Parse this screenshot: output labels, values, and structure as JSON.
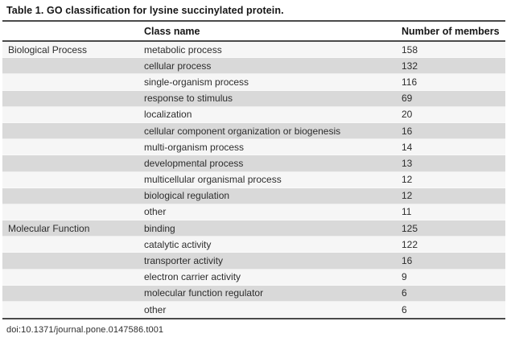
{
  "table": {
    "title": "Table 1. GO classification for lysine succinylated protein.",
    "columns": {
      "group": "",
      "class_name": "Class name",
      "members": "Number of members"
    },
    "rows": [
      {
        "group": "Biological Process",
        "class_name": "metabolic process",
        "members": "158"
      },
      {
        "group": "",
        "class_name": "cellular process",
        "members": "132"
      },
      {
        "group": "",
        "class_name": "single-organism process",
        "members": "116"
      },
      {
        "group": "",
        "class_name": "response to stimulus",
        "members": "69"
      },
      {
        "group": "",
        "class_name": "localization",
        "members": "20"
      },
      {
        "group": "",
        "class_name": "cellular component organization or biogenesis",
        "members": "16"
      },
      {
        "group": "",
        "class_name": "multi-organism process",
        "members": "14"
      },
      {
        "group": "",
        "class_name": "developmental process",
        "members": "13"
      },
      {
        "group": "",
        "class_name": "multicellular organismal process",
        "members": "12"
      },
      {
        "group": "",
        "class_name": "biological regulation",
        "members": "12"
      },
      {
        "group": "",
        "class_name": "other",
        "members": "11"
      },
      {
        "group": "Molecular Function",
        "class_name": "binding",
        "members": "125"
      },
      {
        "group": "",
        "class_name": "catalytic activity",
        "members": "122"
      },
      {
        "group": "",
        "class_name": "transporter activity",
        "members": "16"
      },
      {
        "group": "",
        "class_name": "electron carrier activity",
        "members": "9"
      },
      {
        "group": "",
        "class_name": "molecular function regulator",
        "members": "6"
      },
      {
        "group": "",
        "class_name": "other",
        "members": "6"
      }
    ],
    "footer": "doi:10.1371/journal.pone.0147586.t001",
    "colors": {
      "shaded_row": "#d9d9d9",
      "unshaded_row": "#f6f6f6",
      "rule": "#4a4a4a"
    }
  }
}
